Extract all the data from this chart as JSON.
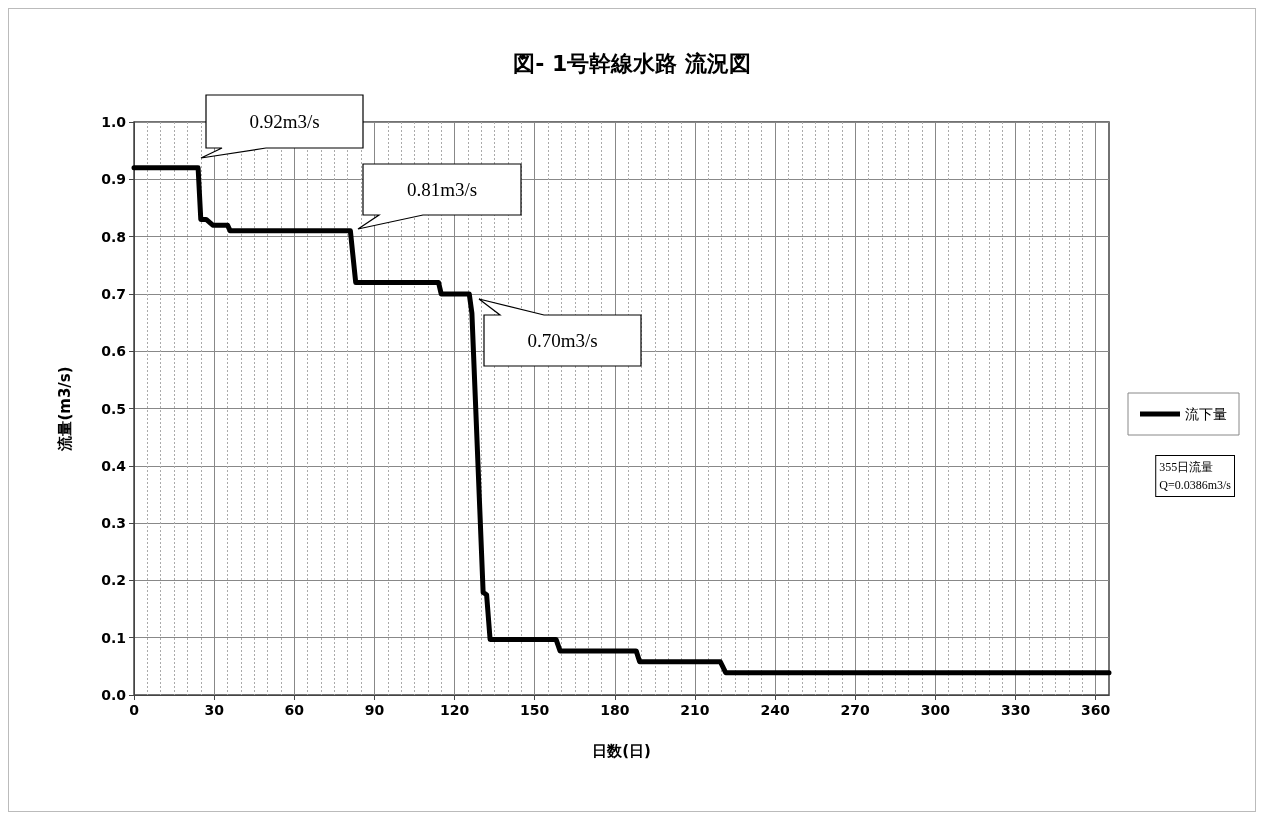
{
  "chart_data": {
    "type": "line",
    "title": "図- 1号幹線水路 流況図",
    "xlabel": "日数(日)",
    "ylabel": "流量(m3/s)",
    "xlim": [
      0,
      365
    ],
    "xticks": [
      0,
      30,
      60,
      90,
      120,
      150,
      180,
      210,
      240,
      270,
      300,
      330,
      360
    ],
    "ylim": [
      0,
      1
    ],
    "yticks": [
      {
        "value": 0,
        "label": "0.0"
      },
      0.1,
      0.2,
      0.3,
      0.4,
      0.5,
      0.6,
      0.7,
      0.8,
      0.9,
      {
        "value": 1,
        "label": "1.0"
      }
    ],
    "grid": true,
    "legend": "right",
    "marker": "none",
    "line_style": "solid",
    "series": [
      {
        "name": "流下量",
        "color": "#000000",
        "x": [
          0,
          24,
          25,
          27,
          29.5,
          35,
          36,
          81,
          83,
          114,
          115,
          125.5,
          126.5,
          130.7,
          132,
          133.3,
          158,
          159.5,
          188,
          189.3,
          219.5,
          221.5,
          365
        ],
        "values": [
          0.92,
          0.92,
          0.83,
          0.83,
          0.82,
          0.82,
          0.81,
          0.81,
          0.72,
          0.72,
          0.7,
          0.7,
          0.666,
          0.179,
          0.175,
          0.097,
          0.097,
          0.077,
          0.077,
          0.058,
          0.058,
          0.039,
          0.039
        ]
      }
    ],
    "annotations": [
      "0.92m3/s",
      "0.81m3/s",
      "0.70m3/s",
      "355日流量\nQ=0.0386m3/s"
    ]
  }
}
